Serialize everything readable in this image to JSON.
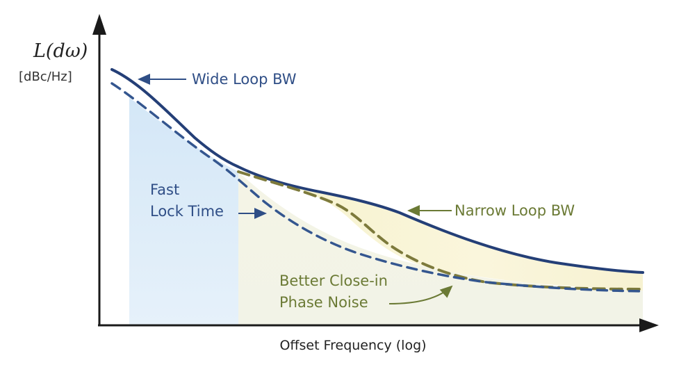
{
  "chart_data": {
    "type": "line",
    "title": "",
    "ylabel": "L(dω)",
    "ylabel_unit": "[dBc/Hz]",
    "xlabel": "Offset Frequency (log)",
    "x_scale": "log",
    "tick_labels": "none",
    "grid": false,
    "legend": "none",
    "series": [
      {
        "name": "Wide Loop BW",
        "style": "solid",
        "color": "#243f77",
        "x": [
          0,
          1,
          2,
          3,
          4,
          5,
          6,
          7,
          8,
          9,
          10
        ],
        "values": [
          0.92,
          0.78,
          0.62,
          0.53,
          0.47,
          0.41,
          0.34,
          0.26,
          0.2,
          0.16,
          0.14
        ]
      },
      {
        "name": "",
        "style": "dashed",
        "color": "#34568f",
        "x": [
          0,
          1,
          2,
          3,
          4,
          5,
          6,
          7,
          8,
          9,
          10
        ],
        "values": [
          0.88,
          0.72,
          0.57,
          0.43,
          0.3,
          0.19,
          0.12,
          0.09,
          0.08,
          0.07,
          0.07
        ]
      },
      {
        "name": "Narrow Loop BW",
        "style": "dashed",
        "color": "#7d7a3c",
        "x": [
          3,
          4,
          5,
          6,
          7,
          8,
          9,
          10
        ],
        "values": [
          0.53,
          0.45,
          0.32,
          0.17,
          0.12,
          0.1,
          0.09,
          0.08
        ]
      }
    ],
    "regions": [
      {
        "name": "Fast Lock Time",
        "color": "#d6e9f8"
      },
      {
        "name": "Better Close-in Phase Noise",
        "color": "#f7f3cf"
      }
    ]
  },
  "annotations": {
    "wide": "Wide Loop BW",
    "narrow": "Narrow Loop BW",
    "fast_1": "Fast",
    "fast_2": "Lock Time",
    "better_1": "Better Close-in",
    "better_2": "Phase Noise"
  },
  "colors": {
    "axis": "#1a1a1a",
    "wide": "#243f77",
    "wide_dash": "#34568f",
    "narrow": "#7d7a3c",
    "blue_text": "#2f4e86",
    "olive_text": "#6b7a35"
  }
}
